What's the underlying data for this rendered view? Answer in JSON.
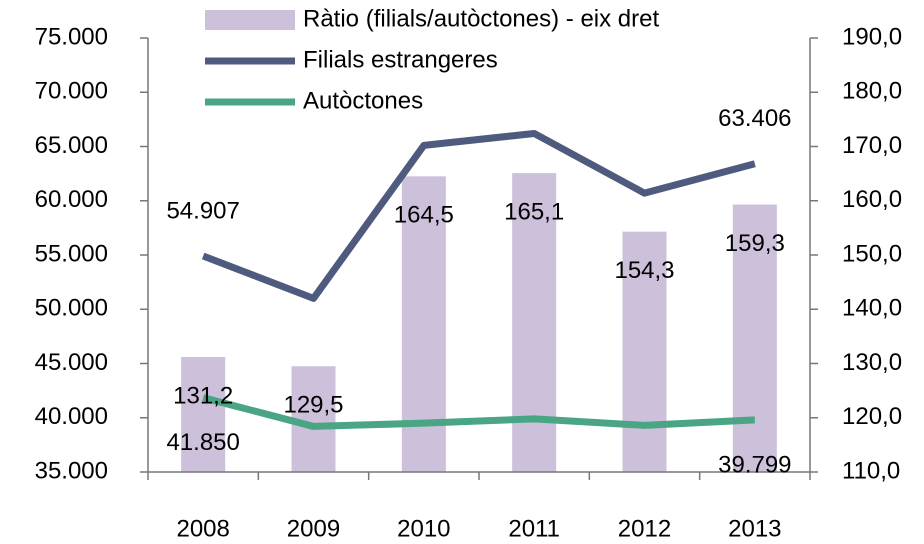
{
  "chart_data": {
    "type": "bar-line",
    "categories": [
      "2008",
      "2009",
      "2010",
      "2011",
      "2012",
      "2013"
    ],
    "series": [
      {
        "name": "Ràtio (filials/autòctones) - eix dret",
        "type": "bar",
        "axis": "y2",
        "color": "#ccc0da",
        "values": [
          131.2,
          129.5,
          164.5,
          165.1,
          154.3,
          159.3
        ],
        "value_labels": [
          "131,2",
          "129,5",
          "164,5",
          "165,1",
          "154,3",
          "159,3"
        ]
      },
      {
        "name": "Filials estrangeres",
        "type": "line",
        "color": "#4f5b7e",
        "values": [
          54907,
          51000,
          65100,
          66200,
          60700,
          63406
        ],
        "value_labels": [
          "54.907",
          null,
          null,
          null,
          null,
          "63.406"
        ]
      },
      {
        "name": "Autòctones",
        "type": "line",
        "color": "#4aa584",
        "values": [
          41850,
          39200,
          39500,
          39900,
          39300,
          39799
        ],
        "value_labels": [
          "41.850",
          null,
          null,
          null,
          null,
          "39.799"
        ]
      }
    ],
    "ylim": [
      35000,
      75000
    ],
    "yticks": [
      {
        "value": 35000,
        "label": "35.000"
      },
      {
        "value": 40000,
        "label": "40.000"
      },
      {
        "value": 45000,
        "label": "45.000"
      },
      {
        "value": 50000,
        "label": "50.000"
      },
      {
        "value": 55000,
        "label": "55.000"
      },
      {
        "value": 60000,
        "label": "60.000"
      },
      {
        "value": 65000,
        "label": "65.000"
      },
      {
        "value": 70000,
        "label": "70.000"
      },
      {
        "value": 75000,
        "label": "75.000"
      }
    ],
    "y2lim": [
      110,
      190
    ],
    "y2ticks": [
      {
        "value": 110,
        "label": "110,0"
      },
      {
        "value": 120,
        "label": "120,0"
      },
      {
        "value": 130,
        "label": "130,0"
      },
      {
        "value": 140,
        "label": "140,0"
      },
      {
        "value": 150,
        "label": "150,0"
      },
      {
        "value": 160,
        "label": "160,0"
      },
      {
        "value": 170,
        "label": "170,0"
      },
      {
        "value": 180,
        "label": "180,0"
      },
      {
        "value": 190,
        "label": "190,0"
      }
    ],
    "grid": false
  }
}
